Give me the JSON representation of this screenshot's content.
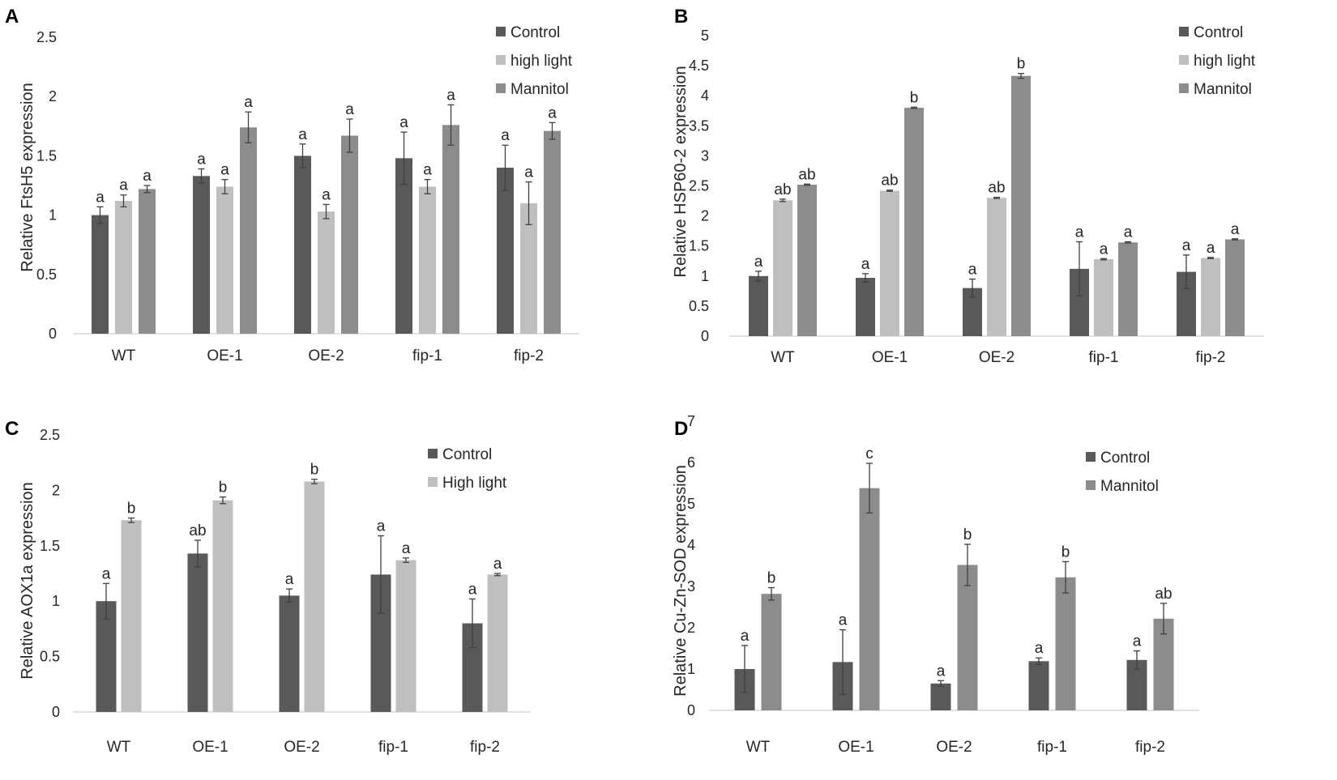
{
  "colors": {
    "Control": "#595959",
    "high light": "#bfbfbf",
    "High light": "#bfbfbf",
    "Mannitol": "#8c8c8c",
    "axis": "#d9d9d9",
    "text": "#262626",
    "error": "#404040"
  },
  "chart_data": [
    {
      "panel": "A",
      "type": "bar",
      "title": "",
      "xlabel": "",
      "ylabel": "Relative FtsH5 expression",
      "categories": [
        "WT",
        "OE-1",
        "OE-2",
        "fip-1",
        "fip-2"
      ],
      "ylim": [
        0,
        2.5
      ],
      "yticks": [
        0,
        0.5,
        1,
        1.5,
        2,
        2.5
      ],
      "yticklabels": [
        "0",
        "0.5",
        "1",
        "1.5",
        "2",
        "2.5"
      ],
      "grid": false,
      "legend_position": "top-right",
      "series": [
        {
          "name": "Control",
          "values": [
            1.0,
            1.33,
            1.5,
            1.48,
            1.4
          ],
          "errors": [
            0.07,
            0.06,
            0.1,
            0.22,
            0.19
          ],
          "labels": [
            "a",
            "a",
            "a",
            "a",
            "a"
          ]
        },
        {
          "name": "high light",
          "values": [
            1.12,
            1.24,
            1.03,
            1.24,
            1.1
          ],
          "errors": [
            0.05,
            0.06,
            0.06,
            0.06,
            0.18
          ],
          "labels": [
            "a",
            "a",
            "a",
            "a",
            "a"
          ]
        },
        {
          "name": "Mannitol",
          "values": [
            1.22,
            1.74,
            1.67,
            1.76,
            1.71
          ],
          "errors": [
            0.03,
            0.13,
            0.14,
            0.17,
            0.07
          ],
          "labels": [
            "a",
            "a",
            "a",
            "a",
            "a"
          ]
        }
      ]
    },
    {
      "panel": "B",
      "type": "bar",
      "title": "",
      "xlabel": "",
      "ylabel": "Relative HSP60-2 expression",
      "categories": [
        "WT",
        "OE-1",
        "OE-2",
        "fip-1",
        "fip-2"
      ],
      "ylim": [
        0,
        5
      ],
      "yticks": [
        0,
        0.5,
        1,
        1.5,
        2,
        2.5,
        3,
        3.5,
        4,
        4.5,
        5
      ],
      "yticklabels": [
        "0",
        "0.5",
        "1",
        "1.5",
        "2",
        "2.5",
        "3",
        "3.5",
        "4",
        "4.5",
        "5"
      ],
      "grid": false,
      "legend_position": "top-right",
      "series": [
        {
          "name": "Control",
          "values": [
            1.0,
            0.97,
            0.8,
            1.12,
            1.07
          ],
          "errors": [
            0.08,
            0.07,
            0.15,
            0.45,
            0.28
          ],
          "labels": [
            "a",
            "a",
            "a",
            "a",
            "a"
          ]
        },
        {
          "name": "high light",
          "values": [
            2.26,
            2.42,
            2.3,
            1.28,
            1.3
          ],
          "errors": [
            0.02,
            0.01,
            0.01,
            0.01,
            0.01
          ],
          "labels": [
            "ab",
            "ab",
            "ab",
            "a",
            "a"
          ]
        },
        {
          "name": "Mannitol",
          "values": [
            2.52,
            3.8,
            4.33,
            1.56,
            1.61
          ],
          "errors": [
            0.01,
            0.01,
            0.04,
            0.01,
            0.01
          ],
          "labels": [
            "ab",
            "b",
            "b",
            "a",
            "a"
          ]
        }
      ]
    },
    {
      "panel": "C",
      "type": "bar",
      "title": "",
      "xlabel": "",
      "ylabel": "Relative AOX1a expression",
      "categories": [
        "WT",
        "OE-1",
        "OE-2",
        "fip-1",
        "fip-2"
      ],
      "ylim": [
        0,
        2.5
      ],
      "yticks": [
        0,
        0.5,
        1,
        1.5,
        2,
        2.5
      ],
      "yticklabels": [
        "0",
        "0.5",
        "1",
        "1.5",
        "2",
        "2.5"
      ],
      "grid": false,
      "legend_position": "top-right",
      "series": [
        {
          "name": "Control",
          "values": [
            1.0,
            1.43,
            1.05,
            1.24,
            0.8
          ],
          "errors": [
            0.16,
            0.12,
            0.06,
            0.35,
            0.22
          ],
          "labels": [
            "a",
            "ab",
            "a",
            "a",
            "a"
          ]
        },
        {
          "name": "High light",
          "values": [
            1.73,
            1.91,
            2.08,
            1.37,
            1.24
          ],
          "errors": [
            0.02,
            0.03,
            0.02,
            0.02,
            0.01
          ],
          "labels": [
            "b",
            "b",
            "b",
            "a",
            "a"
          ]
        }
      ]
    },
    {
      "panel": "D",
      "type": "bar",
      "title": "",
      "xlabel": "",
      "ylabel": "Relative  Cu-Zn-SOD  expression",
      "categories": [
        "WT",
        "OE-1",
        "OE-2",
        "fip-1",
        "fip-2"
      ],
      "ylim": [
        0,
        7
      ],
      "yticks": [
        0,
        1,
        2,
        3,
        4,
        5,
        6,
        7
      ],
      "yticklabels": [
        "0",
        "1",
        "2",
        "3",
        "4",
        "5",
        "6",
        "7"
      ],
      "grid": false,
      "legend_position": "top-right",
      "series": [
        {
          "name": "Control",
          "values": [
            1.0,
            1.17,
            0.65,
            1.19,
            1.22
          ],
          "errors": [
            0.57,
            0.78,
            0.07,
            0.08,
            0.22
          ],
          "labels": [
            "a",
            "a",
            "a",
            "a",
            "a"
          ]
        },
        {
          "name": "Mannitol",
          "values": [
            2.82,
            5.38,
            3.52,
            3.22,
            2.22
          ],
          "errors": [
            0.15,
            0.6,
            0.5,
            0.38,
            0.37
          ],
          "labels": [
            "b",
            "c",
            "b",
            "b",
            "ab"
          ]
        }
      ]
    }
  ]
}
